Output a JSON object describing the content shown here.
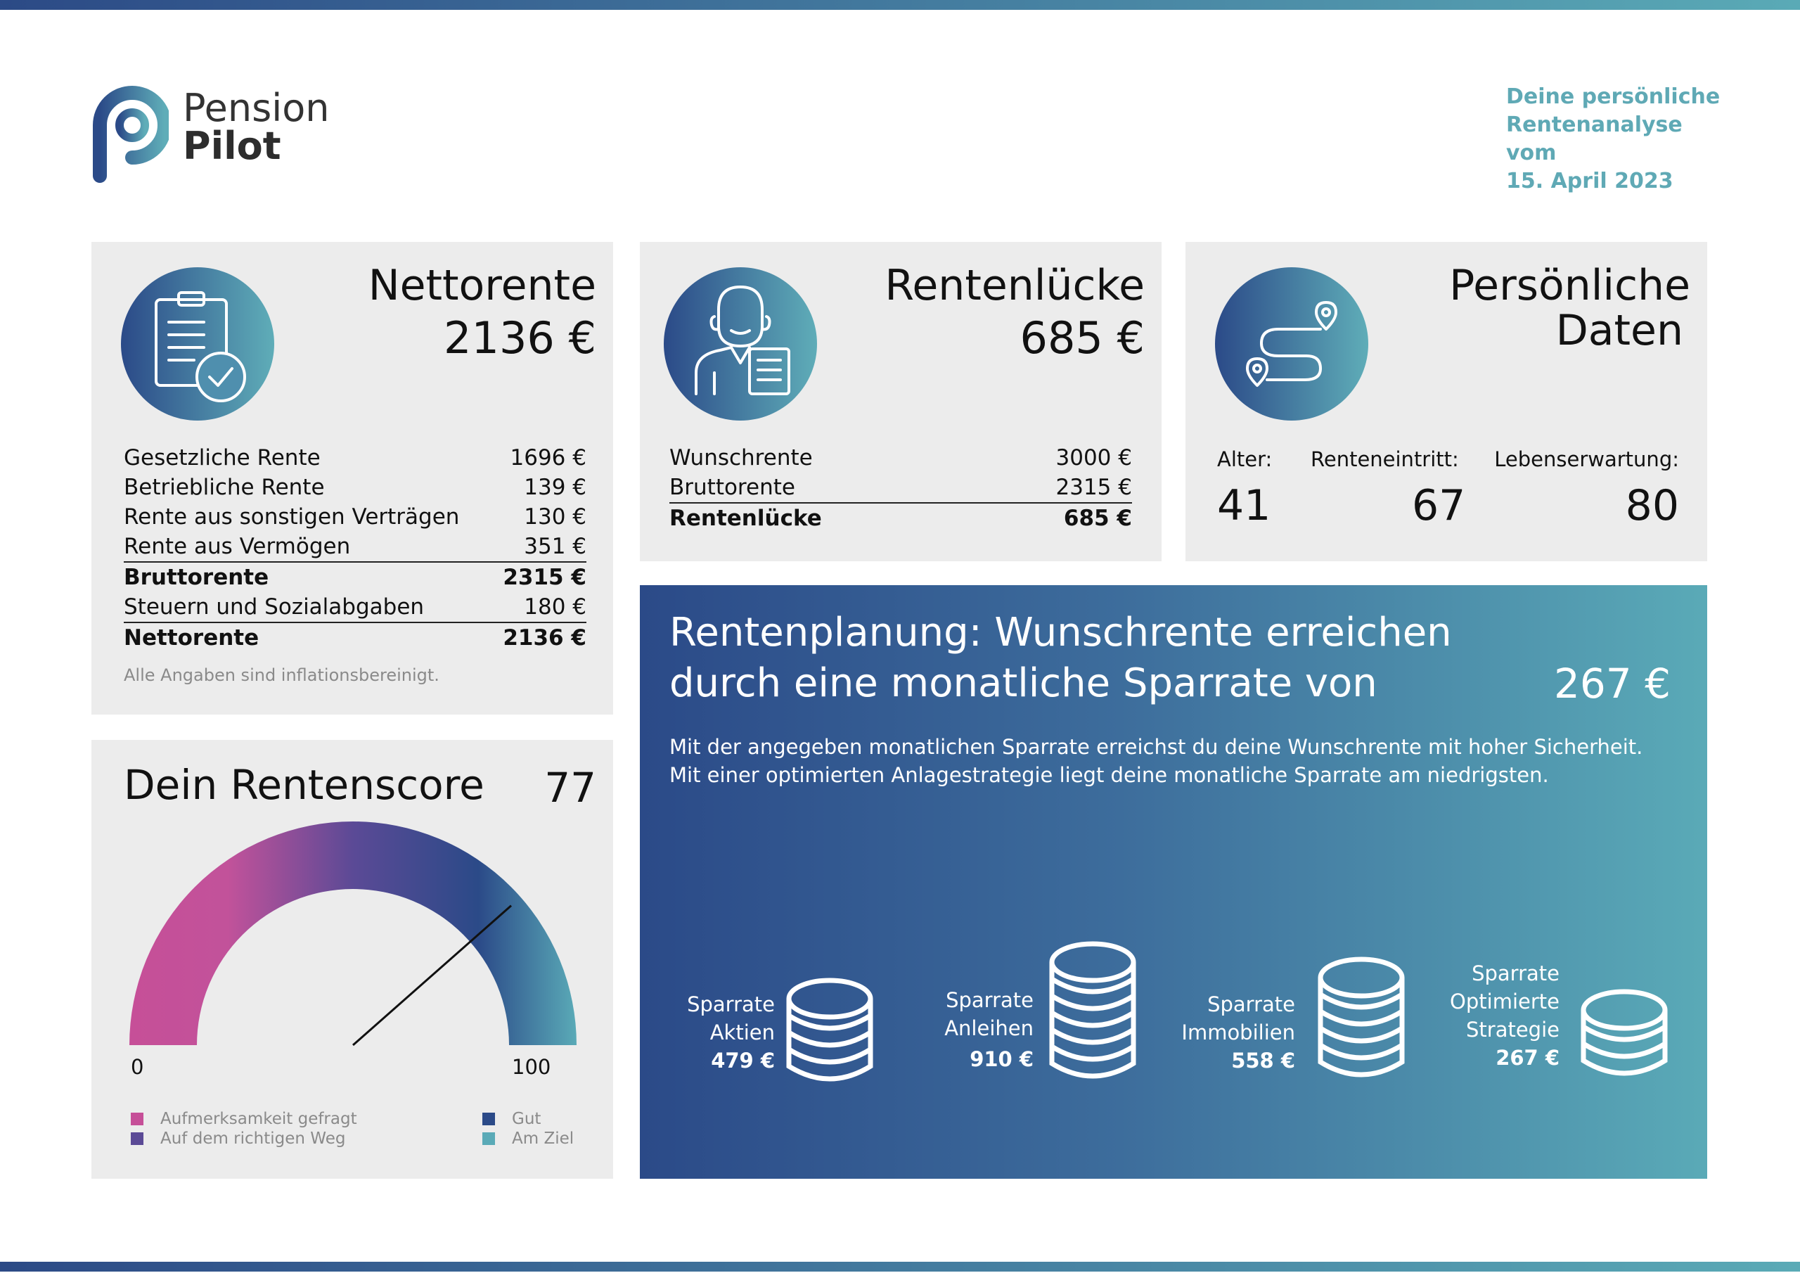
{
  "brand": {
    "line1": "Pension",
    "line2": "Pilot"
  },
  "report_date": [
    "Deine persönliche",
    "Rentenanalyse vom",
    "15. April 2023"
  ],
  "netto": {
    "title": "Nettorente",
    "value": "2136 €",
    "rows": [
      {
        "label": "Gesetzliche Rente",
        "value": "1696 €"
      },
      {
        "label": "Betriebliche Rente",
        "value": "139 €"
      },
      {
        "label": "Rente aus sonstigen Verträgen",
        "value": "130 €"
      },
      {
        "label": "Rente aus Vermögen",
        "value": "351 €"
      },
      {
        "label": "Bruttorente",
        "value": "2315 €"
      },
      {
        "label": "Steuern und Sozialabgaben",
        "value": "180 €"
      },
      {
        "label": "Nettorente",
        "value": "2136 €"
      }
    ],
    "note": "Alle Angaben sind inflationsbereinigt."
  },
  "luecke": {
    "title": "Rentenlücke",
    "value": "685 €",
    "rows": [
      {
        "label": "Wunschrente",
        "value": "3000 €"
      },
      {
        "label": "Bruttorente",
        "value": "2315 €"
      },
      {
        "label": "Rentenlücke",
        "value": "685 €"
      }
    ]
  },
  "personal": {
    "title_line1": "Persönliche",
    "title_line2": "Daten",
    "items": [
      {
        "label": "Alter:",
        "value": "41"
      },
      {
        "label": "Renteneintritt:",
        "value": "67"
      },
      {
        "label": "Lebenserwartung:",
        "value": "80"
      }
    ]
  },
  "score": {
    "title": "Dein Rentenscore",
    "value": "77",
    "score_number": 77,
    "min_label": "0",
    "max_label": "100",
    "legend": [
      {
        "label": "Aufmerksamkeit gefragt",
        "color": "#c64f98"
      },
      {
        "label": "Auf dem richtigen Weg",
        "color": "#5b4a96"
      },
      {
        "label": "Gut",
        "color": "#2b4a88"
      },
      {
        "label": "Am Ziel",
        "color": "#5aaab7"
      }
    ]
  },
  "plan": {
    "title_line1": "Rentenplanung: Wunschrente erreichen",
    "title_line2": "durch eine monatliche Sparrate von",
    "value": "267 €",
    "desc_line1": "Mit der angegeben monatlichen Sparrate erreichst du deine Wunschrente mit hoher Sicherheit.",
    "desc_line2": "Mit einer optimierten Anlagestrategie liegt deine monatliche Sparrate am niedrigsten.",
    "rates": [
      {
        "lines": [
          "Sparrate",
          "Aktien"
        ],
        "value": "479 €"
      },
      {
        "lines": [
          "Sparrate",
          "Anleihen"
        ],
        "value": "910 €"
      },
      {
        "lines": [
          "Sparrate",
          "Immobilien"
        ],
        "value": "558 €"
      },
      {
        "lines": [
          "Sparrate",
          "Optimierte",
          "Strategie"
        ],
        "value": "267 €"
      }
    ]
  }
}
